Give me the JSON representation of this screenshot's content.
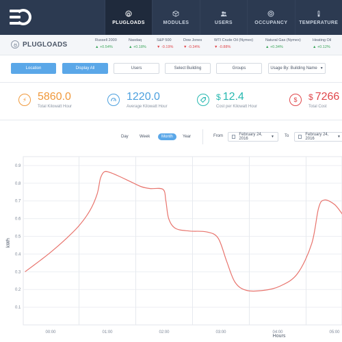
{
  "nav": {
    "items": [
      {
        "label": "PLUGLOADS",
        "icon": "plug-icon",
        "active": true
      },
      {
        "label": "MODULES",
        "icon": "cube-icon",
        "active": false
      },
      {
        "label": "USERS",
        "icon": "users-icon",
        "active": false
      },
      {
        "label": "OCCUPANCY",
        "icon": "occupancy-icon",
        "active": false
      },
      {
        "label": "TEMPERATURE",
        "icon": "thermometer-icon",
        "active": false
      }
    ]
  },
  "page_title": "PLUGLOADS",
  "ticker": [
    {
      "name": "Russell 2000",
      "change": "▲ +0.54%",
      "dir": "up"
    },
    {
      "name": "Nasdaq",
      "change": "▲ +0.18%",
      "dir": "up"
    },
    {
      "name": "S&P 500",
      "change": "▼ -0.19%",
      "dir": "down"
    },
    {
      "name": "Dow Jones",
      "change": "▼ -0.34%",
      "dir": "down"
    },
    {
      "name": "WTI Crude Oil (Nymex)",
      "change": "▼ -0.88%",
      "dir": "down"
    },
    {
      "name": "Natural Gas (Nymex)",
      "change": "▲ +0.34%",
      "dir": "up"
    },
    {
      "name": "Heating Oil",
      "change": "▲ +0.12%",
      "dir": "up"
    }
  ],
  "toolbar": {
    "location": "Location",
    "display_all": "Display All",
    "users": "Users",
    "select_building": "Select Building",
    "groups": "Groups",
    "usage_by": "Usage By: Building Name"
  },
  "stats": [
    {
      "value": "5860.0",
      "currency": "",
      "label": "Total Kilowatt Hour",
      "color": "#f0983a",
      "icon": "bolt-icon"
    },
    {
      "value": "1220.0",
      "currency": "",
      "label": "Average Kilowatt Hour",
      "color": "#4a9fde",
      "icon": "gauge-icon"
    },
    {
      "value": "12.4",
      "currency": "$",
      "label": "Cost per Kilowatt Hour",
      "color": "#26b8b0",
      "icon": "tag-icon"
    },
    {
      "value": "7266",
      "currency": "$",
      "label": "Total Cost",
      "color": "#e0464a",
      "icon": "dollar-icon"
    }
  ],
  "range": {
    "tabs": [
      "Day",
      "Week",
      "Month",
      "Year"
    ],
    "active_tab": "Month",
    "from_label": "From",
    "from_date": "February 24, 2016",
    "to_label": "To",
    "to_date": "February 24, 2016"
  },
  "chart_data": {
    "type": "line",
    "xlabel": "Hours",
    "ylabel": "kWh",
    "x_ticks": [
      "00:00",
      "01:00",
      "02:00",
      "03:00",
      "04:00",
      "05:00"
    ],
    "y_ticks": [
      0.1,
      0.2,
      0.3,
      0.4,
      0.5,
      0.6,
      0.7,
      0.8,
      0.9
    ],
    "ylim": [
      0,
      0.95
    ],
    "grid": true,
    "series": [
      {
        "color": "#e8736c",
        "points": [
          [
            -0.45,
            0.3
          ],
          [
            -0.2,
            0.36
          ],
          [
            0.0,
            0.41
          ],
          [
            0.25,
            0.48
          ],
          [
            0.5,
            0.56
          ],
          [
            0.7,
            0.65
          ],
          [
            0.82,
            0.74
          ],
          [
            0.88,
            0.83
          ],
          [
            0.95,
            0.865
          ],
          [
            1.05,
            0.86
          ],
          [
            1.2,
            0.84
          ],
          [
            1.4,
            0.81
          ],
          [
            1.6,
            0.78
          ],
          [
            1.75,
            0.77
          ],
          [
            1.98,
            0.765
          ],
          [
            2.03,
            0.7
          ],
          [
            2.08,
            0.6
          ],
          [
            2.2,
            0.545
          ],
          [
            2.45,
            0.53
          ],
          [
            2.75,
            0.525
          ],
          [
            2.95,
            0.49
          ],
          [
            3.1,
            0.36
          ],
          [
            3.25,
            0.24
          ],
          [
            3.45,
            0.195
          ],
          [
            3.75,
            0.195
          ],
          [
            4.05,
            0.22
          ],
          [
            4.35,
            0.29
          ],
          [
            4.6,
            0.46
          ],
          [
            4.72,
            0.66
          ],
          [
            4.82,
            0.705
          ],
          [
            5.0,
            0.68
          ],
          [
            5.15,
            0.62
          ]
        ]
      }
    ]
  }
}
